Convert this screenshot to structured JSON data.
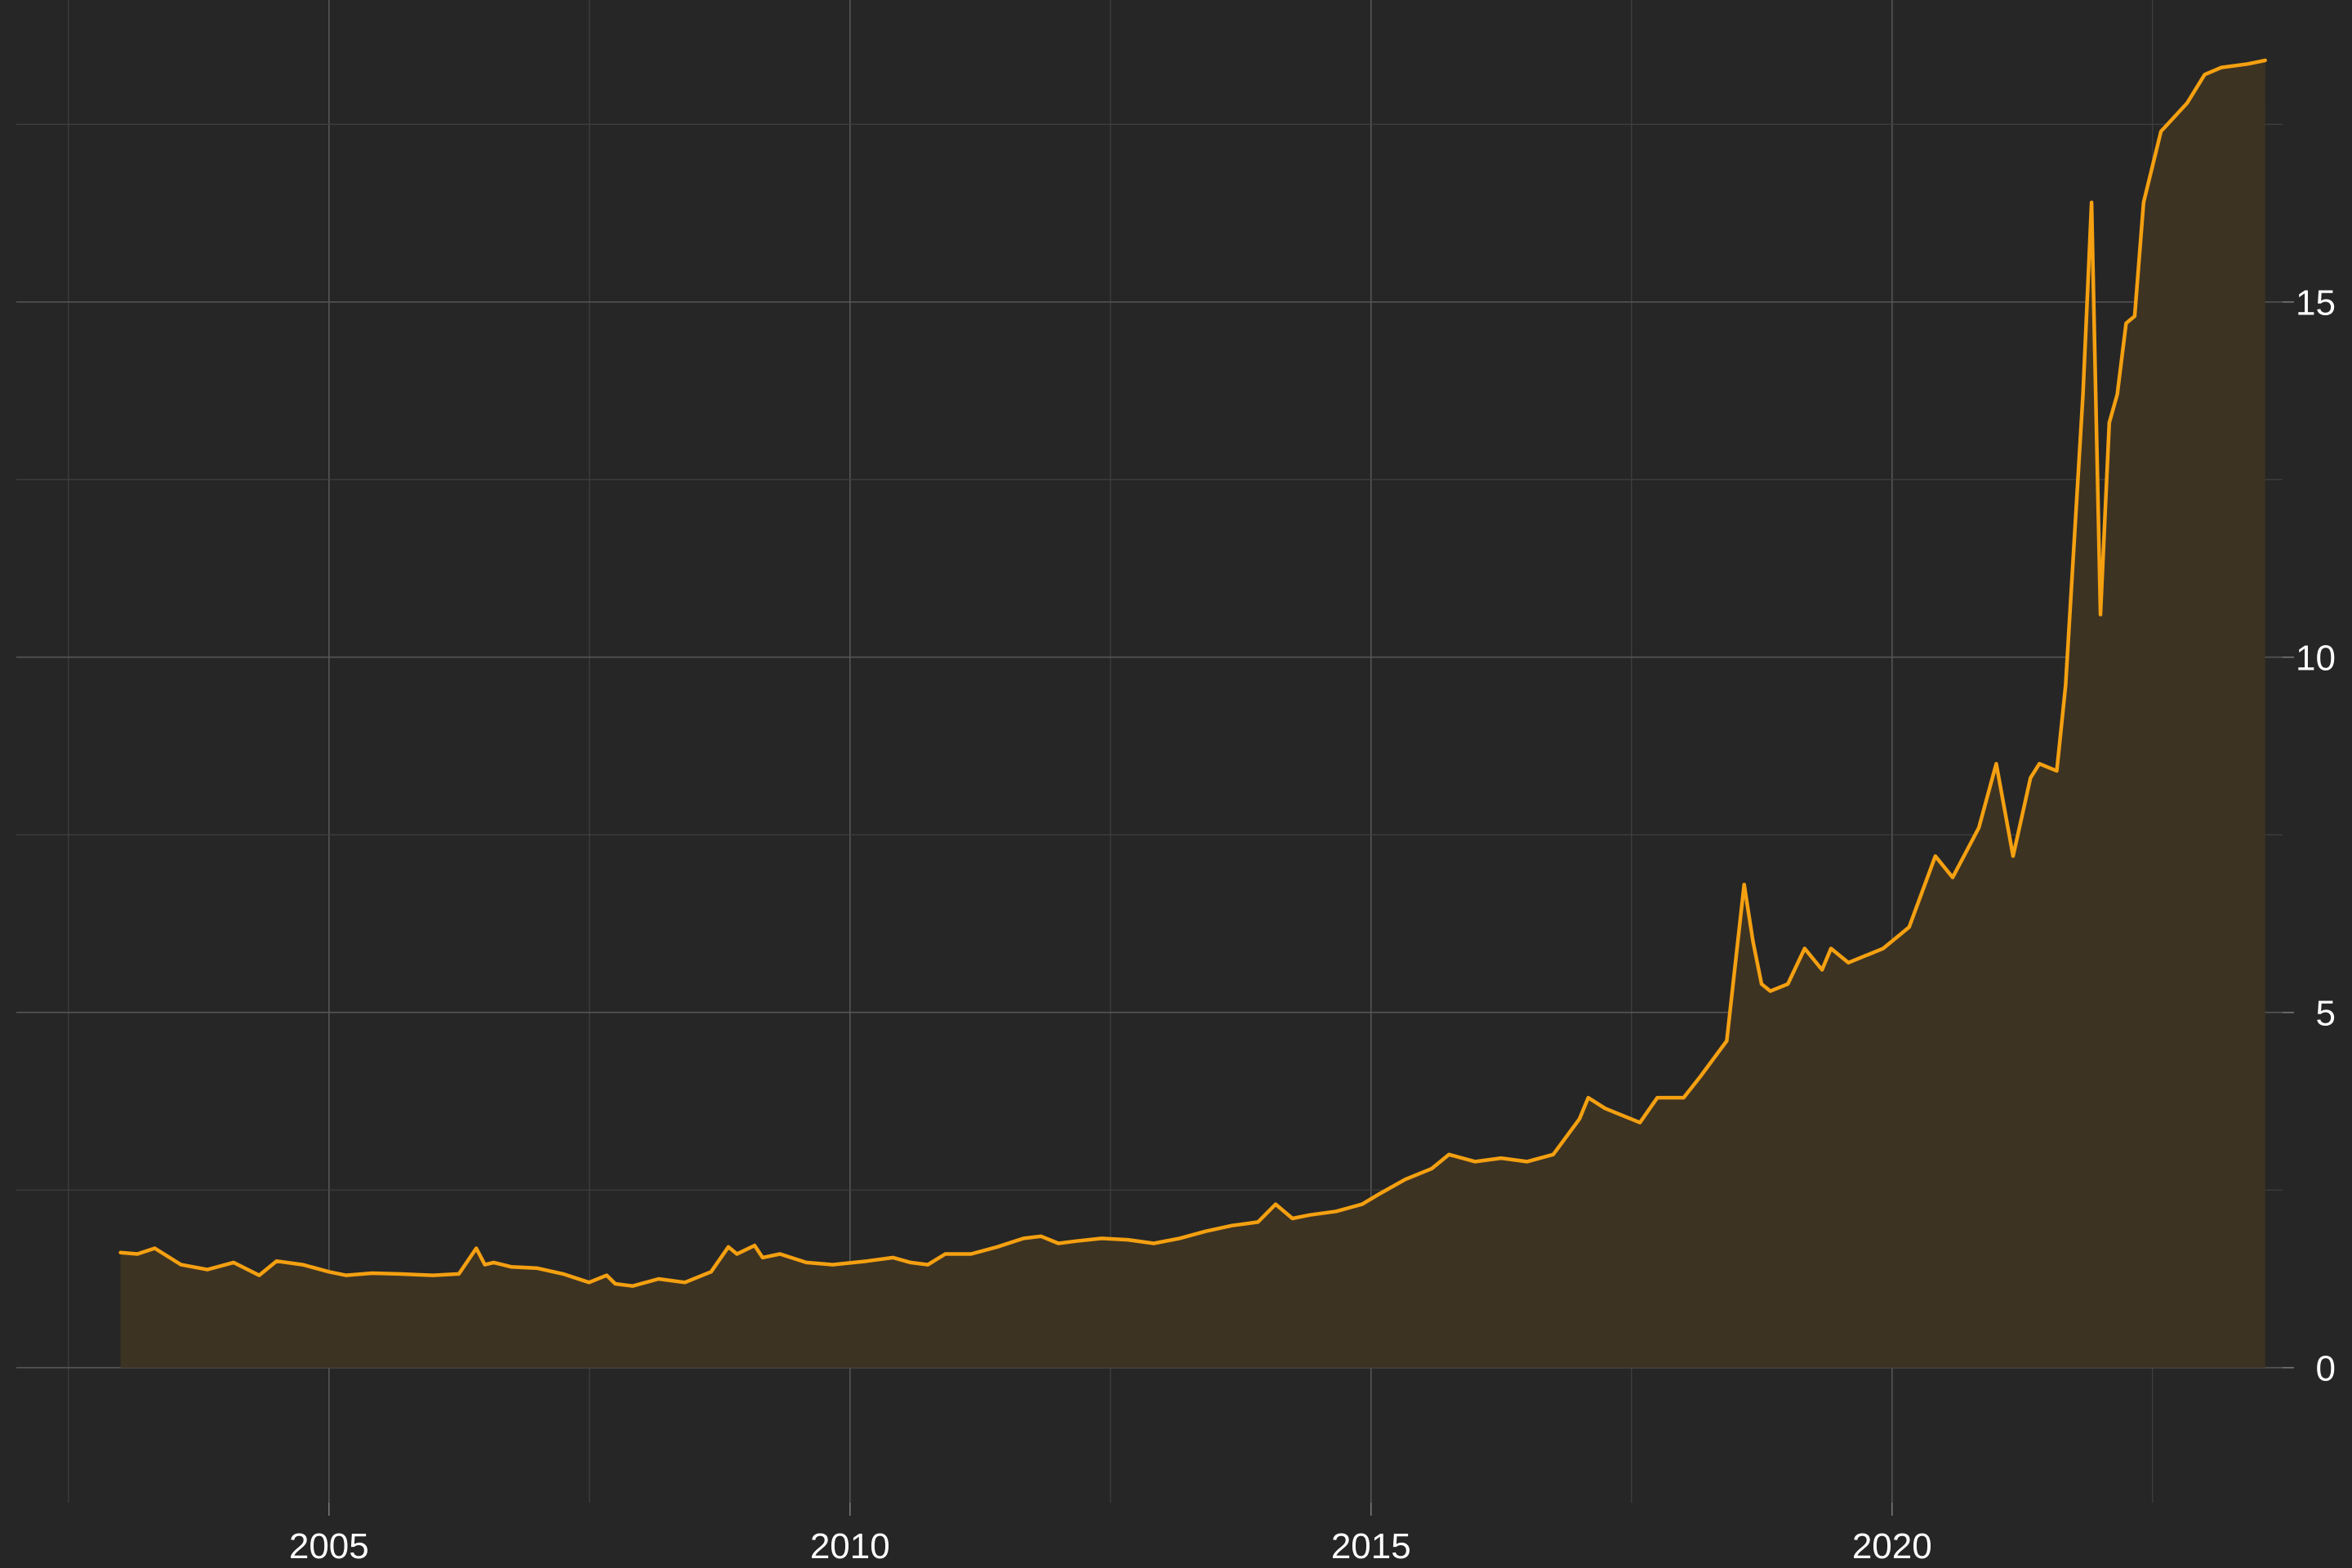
{
  "chart_data": {
    "type": "area",
    "title": "",
    "xlabel": "",
    "ylabel": "",
    "x_axis": {
      "type": "date",
      "range": [
        "2002-01-01",
        "2023-10-01"
      ],
      "major_ticks": [
        2005,
        2010,
        2015,
        2020
      ],
      "tick_labels": [
        "2005",
        "2010",
        "2015",
        "2020"
      ]
    },
    "y_axis": {
      "position": "right",
      "range": [
        -1.9,
        19.25
      ],
      "major_ticks": [
        0,
        5,
        10,
        15
      ],
      "tick_labels": [
        "0",
        "5",
        "10",
        "15"
      ]
    },
    "grid": true,
    "legend": "none",
    "colors": {
      "background": "#262626",
      "line": "#f4a011",
      "fill": "#3d3323"
    },
    "series": [
      {
        "x": [
          "2003-01-01",
          "2003-03-01",
          "2003-05-01",
          "2003-08-01",
          "2003-11-01",
          "2004-02-01",
          "2004-05-01",
          "2004-07-01",
          "2004-10-01",
          "2005-01-01",
          "2005-03-01",
          "2005-06-01",
          "2005-09-01",
          "2006-01-01",
          "2006-04-01",
          "2006-06-01",
          "2006-07-01",
          "2006-08-01",
          "2006-10-01",
          "2007-01-01",
          "2007-04-01",
          "2007-07-01",
          "2007-09-01",
          "2007-10-01",
          "2007-12-01",
          "2008-03-01",
          "2008-06-01",
          "2008-09-01",
          "2008-11-01",
          "2008-12-01",
          "2009-02-01",
          "2009-03-01",
          "2009-05-01",
          "2009-08-01",
          "2009-11-01",
          "2010-03-01",
          "2010-06-01",
          "2010-08-01",
          "2010-10-01",
          "2010-12-01",
          "2011-03-01",
          "2011-06-01",
          "2011-09-01",
          "2011-11-01",
          "2012-01-01",
          "2012-03-01",
          "2012-06-01",
          "2012-09-01",
          "2012-12-01",
          "2013-03-01",
          "2013-06-01",
          "2013-09-01",
          "2013-12-01",
          "2014-02-01",
          "2014-04-01",
          "2014-06-01",
          "2014-09-01",
          "2014-12-01",
          "2015-02-01",
          "2015-05-01",
          "2015-08-01",
          "2015-10-01",
          "2016-01-01",
          "2016-04-01",
          "2016-07-01",
          "2016-10-01",
          "2017-01-01",
          "2017-02-01",
          "2017-04-01",
          "2017-06-01",
          "2017-08-01",
          "2017-10-01",
          "2018-01-01",
          "2018-03-01",
          "2018-06-01",
          "2018-08-01",
          "2018-09-01",
          "2018-10-01",
          "2018-11-01",
          "2019-01-01",
          "2019-03-01",
          "2019-05-01",
          "2019-06-01",
          "2019-08-01",
          "2019-10-01",
          "2019-12-01",
          "2020-03-01",
          "2020-06-01",
          "2020-08-01",
          "2020-11-01",
          "2021-01-01",
          "2021-03-01",
          "2021-05-01",
          "2021-06-01",
          "2021-08-01",
          "2021-09-01",
          "2021-11-01",
          "2021-12-01",
          "2022-01-01",
          "2022-02-01",
          "2022-03-01",
          "2022-04-01",
          "2022-05-01",
          "2022-06-01",
          "2022-08-01",
          "2022-11-01",
          "2023-01-01",
          "2023-03-01",
          "2023-06-01",
          "2023-08-01"
        ],
        "values": [
          1.62,
          1.6,
          1.68,
          1.45,
          1.38,
          1.48,
          1.3,
          1.5,
          1.45,
          1.35,
          1.3,
          1.33,
          1.32,
          1.3,
          1.32,
          1.68,
          1.45,
          1.48,
          1.42,
          1.4,
          1.32,
          1.2,
          1.3,
          1.18,
          1.15,
          1.25,
          1.2,
          1.35,
          1.7,
          1.6,
          1.72,
          1.55,
          1.6,
          1.48,
          1.45,
          1.5,
          1.55,
          1.48,
          1.45,
          1.6,
          1.6,
          1.7,
          1.82,
          1.85,
          1.75,
          1.78,
          1.82,
          1.8,
          1.75,
          1.82,
          1.92,
          2.0,
          2.05,
          2.3,
          2.1,
          2.15,
          2.2,
          2.3,
          2.45,
          2.65,
          2.8,
          3.0,
          2.9,
          2.95,
          2.9,
          3.0,
          3.5,
          3.8,
          3.65,
          3.55,
          3.45,
          3.8,
          3.8,
          4.1,
          4.6,
          6.8,
          6.0,
          5.4,
          5.3,
          5.4,
          5.9,
          5.6,
          5.9,
          5.7,
          5.8,
          5.9,
          6.2,
          7.2,
          6.9,
          7.6,
          8.5,
          7.2,
          8.3,
          8.5,
          8.4,
          9.6,
          13.7,
          16.4,
          10.6,
          13.3,
          13.7,
          14.7,
          14.8,
          16.4,
          17.4,
          17.8,
          18.2,
          18.3,
          18.35,
          18.4
        ]
      }
    ]
  }
}
